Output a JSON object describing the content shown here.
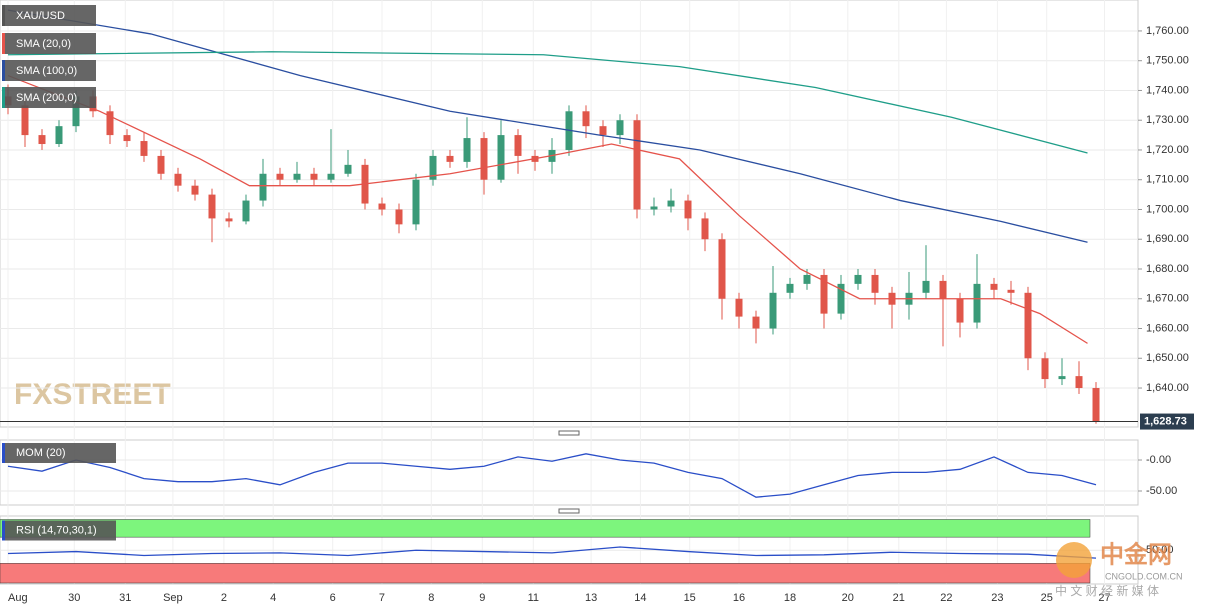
{
  "chart_data": [
    {
      "type": "candlestick",
      "title": "XAU/USD",
      "up_color": "#3a9a78",
      "down_color": "#e0564a",
      "candles": [
        [
          1738,
          1742,
          1732,
          1735
        ],
        [
          1735,
          1737,
          1721,
          1725
        ],
        [
          1725,
          1727,
          1720,
          1722
        ],
        [
          1722,
          1730,
          1721,
          1728
        ],
        [
          1728,
          1740,
          1726,
          1738
        ],
        [
          1738,
          1740,
          1731,
          1733
        ],
        [
          1733,
          1735,
          1722,
          1725
        ],
        [
          1725,
          1727,
          1721,
          1723
        ],
        [
          1723,
          1726,
          1716,
          1718
        ],
        [
          1718,
          1720,
          1710,
          1712
        ],
        [
          1712,
          1714,
          1706,
          1708
        ],
        [
          1708,
          1710,
          1703,
          1705
        ],
        [
          1705,
          1707,
          1689,
          1697
        ],
        [
          1697,
          1699,
          1694,
          1696
        ],
        [
          1696,
          1705,
          1695,
          1703
        ],
        [
          1703,
          1717,
          1701,
          1712
        ],
        [
          1712,
          1714,
          1708,
          1710
        ],
        [
          1710,
          1716,
          1709,
          1712
        ],
        [
          1712,
          1714,
          1708,
          1710
        ],
        [
          1710,
          1727,
          1709,
          1712
        ],
        [
          1712,
          1720,
          1711,
          1715
        ],
        [
          1715,
          1717,
          1700,
          1702
        ],
        [
          1702,
          1704,
          1698,
          1700
        ],
        [
          1700,
          1702,
          1692,
          1695
        ],
        [
          1695,
          1712,
          1693,
          1710
        ],
        [
          1710,
          1720,
          1708,
          1718
        ],
        [
          1718,
          1720,
          1714,
          1716
        ],
        [
          1716,
          1731,
          1714,
          1724
        ],
        [
          1724,
          1726,
          1705,
          1710
        ],
        [
          1710,
          1730,
          1709,
          1725
        ],
        [
          1725,
          1727,
          1712,
          1718
        ],
        [
          1718,
          1720,
          1713,
          1716
        ],
        [
          1716,
          1724,
          1712,
          1720
        ],
        [
          1720,
          1735,
          1718,
          1733
        ],
        [
          1733,
          1735,
          1724,
          1728
        ],
        [
          1728,
          1730,
          1721,
          1725
        ],
        [
          1725,
          1732,
          1722,
          1730
        ],
        [
          1730,
          1732,
          1697,
          1700
        ],
        [
          1700,
          1704,
          1698,
          1701
        ],
        [
          1701,
          1707,
          1699,
          1703
        ],
        [
          1703,
          1705,
          1693,
          1697
        ],
        [
          1697,
          1699,
          1686,
          1690
        ],
        [
          1690,
          1692,
          1663,
          1670
        ],
        [
          1670,
          1672,
          1660,
          1664
        ],
        [
          1664,
          1666,
          1655,
          1660
        ],
        [
          1660,
          1681,
          1658,
          1672
        ],
        [
          1672,
          1677,
          1670,
          1675
        ],
        [
          1675,
          1680,
          1673,
          1678
        ],
        [
          1678,
          1680,
          1660,
          1665
        ],
        [
          1665,
          1678,
          1663,
          1675
        ],
        [
          1675,
          1680,
          1673,
          1678
        ],
        [
          1678,
          1680,
          1668,
          1672
        ],
        [
          1672,
          1674,
          1660,
          1668
        ],
        [
          1668,
          1679,
          1663,
          1672
        ],
        [
          1672,
          1688,
          1670,
          1676
        ],
        [
          1676,
          1678,
          1654,
          1670
        ],
        [
          1670,
          1672,
          1657,
          1662
        ],
        [
          1662,
          1685,
          1660,
          1675
        ],
        [
          1675,
          1677,
          1670,
          1673
        ],
        [
          1673,
          1676,
          1668,
          1672
        ],
        [
          1672,
          1674,
          1646,
          1650
        ],
        [
          1650,
          1652,
          1640,
          1643
        ],
        [
          1643,
          1650,
          1641,
          1644
        ],
        [
          1644,
          1649,
          1638,
          1640
        ],
        [
          1640,
          1642,
          1628,
          1628.73
        ]
      ],
      "series": [
        {
          "name": "SMA (20,0)",
          "color": "#e5534b",
          "x": [
            0,
            5.4,
            11.3,
            14.2,
            20.1,
            26,
            31.9,
            35.5,
            39.5,
            43,
            46.6,
            50.1,
            55.4,
            58.4,
            60.7,
            63.5
          ],
          "values": [
            1745,
            1733,
            1717,
            1708,
            1708,
            1712,
            1718,
            1722,
            1717,
            1698,
            1680,
            1670,
            1670,
            1670,
            1665,
            1655
          ]
        },
        {
          "name": "SMA (100,0)",
          "color": "#2a4ea0",
          "x": [
            0,
            8.4,
            17.2,
            26,
            34.8,
            40.7,
            46.6,
            52.5,
            58.4,
            63.5
          ],
          "values": [
            1767,
            1759,
            1745,
            1733,
            1725,
            1720,
            1712,
            1703,
            1696,
            1689
          ]
        },
        {
          "name": "SMA (200,0)",
          "color": "#1f9e89",
          "x": [
            0,
            15.5,
            31.5,
            39.5,
            47.5,
            55.5,
            63.5
          ],
          "values": [
            1752,
            1753,
            1752,
            1748,
            1741,
            1731,
            1719
          ]
        }
      ],
      "last_price": {
        "value": 1628.73,
        "label": "1,628.73"
      },
      "watermark": "FXSTREET",
      "xlim": [
        -0.47,
        66.47
      ],
      "ylim": [
        1626.9,
        1770.4
      ],
      "yticks": [
        {
          "value": 1640,
          "label": "1,640.00"
        },
        {
          "value": 1650,
          "label": "1,650.00"
        },
        {
          "value": 1660,
          "label": "1,660.00"
        },
        {
          "value": 1670,
          "label": "1,670.00"
        },
        {
          "value": 1680,
          "label": "1,680.00"
        },
        {
          "value": 1690,
          "label": "1,690.00"
        },
        {
          "value": 1700,
          "label": "1,700.00"
        },
        {
          "value": 1710,
          "label": "1,710.00"
        },
        {
          "value": 1720,
          "label": "1,720.00"
        },
        {
          "value": 1730,
          "label": "1,730.00"
        },
        {
          "value": 1740,
          "label": "1,740.00"
        },
        {
          "value": 1750,
          "label": "1,750.00"
        },
        {
          "value": 1760,
          "label": "1,760.00"
        }
      ],
      "xticks": [
        {
          "value": 0,
          "label": "Aug"
        },
        {
          "value": 3.9,
          "label": "30"
        },
        {
          "value": 6.9,
          "label": "31"
        },
        {
          "value": 9.7,
          "label": "Sep"
        },
        {
          "value": 12.7,
          "label": "2"
        },
        {
          "value": 15.6,
          "label": "4"
        },
        {
          "value": 19.1,
          "label": "6"
        },
        {
          "value": 22,
          "label": "7"
        },
        {
          "value": 24.9,
          "label": "8"
        },
        {
          "value": 27.9,
          "label": "9"
        },
        {
          "value": 30.9,
          "label": "11"
        },
        {
          "value": 34.3,
          "label": "13"
        },
        {
          "value": 37.2,
          "label": "14"
        },
        {
          "value": 40.1,
          "label": "15"
        },
        {
          "value": 43,
          "label": "16"
        },
        {
          "value": 46,
          "label": "18"
        },
        {
          "value": 49.4,
          "label": "20"
        },
        {
          "value": 52.4,
          "label": "21"
        },
        {
          "value": 55.2,
          "label": "22"
        },
        {
          "value": 58.2,
          "label": "23"
        },
        {
          "value": 61.1,
          "label": "25"
        },
        {
          "value": 64.5,
          "label": "27"
        }
      ],
      "grid": true
    },
    {
      "type": "line",
      "title": "MOM (20)",
      "color": "#2a4ec8",
      "x": [
        0,
        2,
        4,
        6,
        8,
        10,
        12,
        14,
        16,
        18,
        20,
        22,
        24,
        26,
        28,
        30,
        32,
        34,
        36,
        38,
        40,
        42,
        44,
        46,
        48,
        50,
        52,
        54,
        56,
        58,
        60,
        62,
        64
      ],
      "values": [
        -10,
        -18,
        0,
        -12,
        -30,
        -35,
        -35,
        -30,
        -40,
        -20,
        -5,
        -5,
        -10,
        -15,
        -10,
        5,
        -2,
        10,
        0,
        -5,
        -20,
        -30,
        -60,
        -55,
        -40,
        -25,
        -20,
        -20,
        -15,
        5,
        -20,
        -25,
        -40
      ],
      "xlim": [
        -0.47,
        66.47
      ],
      "ylim": [
        -72.6,
        32.3
      ],
      "yticks": [
        {
          "value": 0,
          "label": "-0.00"
        },
        {
          "value": -50,
          "label": "-50.00"
        }
      ]
    },
    {
      "type": "line",
      "title": "RSI (14,70,30,1)",
      "color": "#2a4ec8",
      "overbought": 70,
      "oversold": 30,
      "x": [
        0,
        4,
        8,
        12,
        16,
        20,
        24,
        28,
        32,
        36,
        40,
        44,
        48,
        52,
        56,
        60,
        64
      ],
      "values": [
        45,
        48,
        42,
        45,
        46,
        42,
        50,
        48,
        46,
        55,
        48,
        42,
        43,
        47,
        45,
        44,
        38
      ],
      "xlim": [
        -0.47,
        66.47
      ],
      "ylim": [
        0,
        100
      ],
      "yticks": [
        {
          "value": 50,
          "label": "50.00"
        }
      ]
    }
  ],
  "logo": {
    "name": "中金网",
    "domain": "CNGOLD.COM.CN",
    "tagline": "中 文 财 经 新 媒 体"
  }
}
